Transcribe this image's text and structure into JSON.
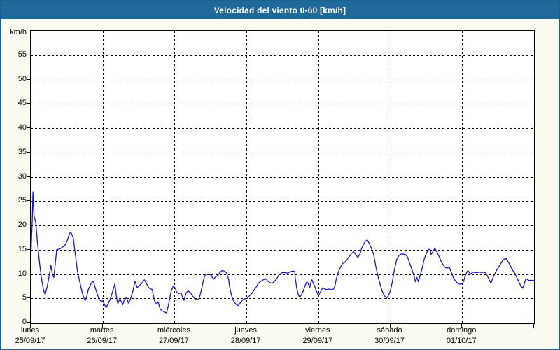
{
  "window": {
    "title": "Velocidad del viento 0-60 [km/h]"
  },
  "colors": {
    "header_bg": "#1f6a9b",
    "frame_border": "#1d6290",
    "page_bg": "#fbfbf1",
    "plot_bg": "#fffffe",
    "line": "#1414cc",
    "grid": "#000000",
    "text": "#000000"
  },
  "chart_data": {
    "type": "line",
    "title": "Velocidad del viento 0-60 [km/h]",
    "ylabel": "km/h",
    "xlabel": "",
    "ylim": [
      0,
      60
    ],
    "grid": "dashed",
    "legend_position": "none",
    "y_tick_labels": [
      0,
      5,
      10,
      15,
      20,
      25,
      30,
      35,
      40,
      45,
      50,
      55
    ],
    "y_gridlines": [
      5,
      10,
      15,
      20,
      25,
      30,
      35,
      40,
      45,
      50,
      55
    ],
    "x_axis": {
      "unit": "days",
      "days": [
        {
          "name": "lunes",
          "date": "25/09/17"
        },
        {
          "name": "martes",
          "date": "26/09/17"
        },
        {
          "name": "miércoles",
          "date": "27/09/17"
        },
        {
          "name": "jueves",
          "date": "28/09/17"
        },
        {
          "name": "viernes",
          "date": "29/09/17"
        },
        {
          "name": "sábado",
          "date": "30/09/17"
        },
        {
          "name": "domingo",
          "date": "01/10/17"
        }
      ]
    },
    "series": [
      {
        "name": "velocidad-del-viento",
        "units": "km/h",
        "points": [
          [
            0.0,
            13.0
          ],
          [
            0.01,
            17.0
          ],
          [
            0.02,
            21.0
          ],
          [
            0.03,
            26.9
          ],
          [
            0.045,
            22.0
          ],
          [
            0.07,
            20.5
          ],
          [
            0.09,
            17.0
          ],
          [
            0.12,
            12.5
          ],
          [
            0.15,
            9.0
          ],
          [
            0.18,
            6.5
          ],
          [
            0.2,
            5.8
          ],
          [
            0.23,
            7.5
          ],
          [
            0.26,
            10.0
          ],
          [
            0.28,
            11.8
          ],
          [
            0.3,
            10.0
          ],
          [
            0.32,
            9.3
          ],
          [
            0.34,
            12.0
          ],
          [
            0.36,
            15.0
          ],
          [
            0.39,
            15.1
          ],
          [
            0.42,
            15.3
          ],
          [
            0.45,
            15.6
          ],
          [
            0.48,
            16.0
          ],
          [
            0.51,
            17.0
          ],
          [
            0.54,
            18.4
          ],
          [
            0.56,
            18.5
          ],
          [
            0.59,
            17.5
          ],
          [
            0.62,
            14.0
          ],
          [
            0.65,
            10.5
          ],
          [
            0.68,
            8.5
          ],
          [
            0.71,
            6.5
          ],
          [
            0.74,
            5.0
          ],
          [
            0.76,
            4.6
          ],
          [
            0.78,
            5.5
          ],
          [
            0.8,
            6.8
          ],
          [
            0.83,
            7.8
          ],
          [
            0.85,
            8.3
          ],
          [
            0.87,
            8.5
          ],
          [
            0.9,
            7.0
          ],
          [
            0.92,
            6.1
          ],
          [
            0.95,
            4.8
          ],
          [
            0.98,
            4.4
          ],
          [
            1.0,
            4.5
          ],
          [
            1.03,
            3.6
          ],
          [
            1.05,
            3.1
          ],
          [
            1.08,
            4.0
          ],
          [
            1.11,
            5.0
          ],
          [
            1.14,
            6.5
          ],
          [
            1.17,
            8.0
          ],
          [
            1.19,
            5.5
          ],
          [
            1.21,
            3.9
          ],
          [
            1.24,
            4.9
          ],
          [
            1.26,
            4.3
          ],
          [
            1.28,
            3.7
          ],
          [
            1.3,
            4.6
          ],
          [
            1.33,
            5.2
          ],
          [
            1.36,
            4.0
          ],
          [
            1.39,
            5.0
          ],
          [
            1.42,
            6.5
          ],
          [
            1.45,
            8.5
          ],
          [
            1.48,
            7.2
          ],
          [
            1.51,
            7.6
          ],
          [
            1.54,
            8.0
          ],
          [
            1.58,
            8.8
          ],
          [
            1.61,
            8.0
          ],
          [
            1.64,
            7.2
          ],
          [
            1.66,
            7.0
          ],
          [
            1.69,
            6.8
          ],
          [
            1.72,
            4.5
          ],
          [
            1.75,
            3.8
          ],
          [
            1.77,
            4.3
          ],
          [
            1.8,
            2.8
          ],
          [
            1.83,
            2.4
          ],
          [
            1.86,
            2.2
          ],
          [
            1.89,
            2.0
          ],
          [
            1.92,
            4.0
          ],
          [
            1.95,
            6.3
          ],
          [
            1.98,
            7.5
          ],
          [
            2.01,
            7.1
          ],
          [
            2.03,
            6.2
          ],
          [
            2.06,
            6.0
          ],
          [
            2.09,
            6.1
          ],
          [
            2.11,
            5.3
          ],
          [
            2.13,
            4.6
          ],
          [
            2.16,
            6.1
          ],
          [
            2.19,
            6.5
          ],
          [
            2.22,
            6.2
          ],
          [
            2.25,
            5.5
          ],
          [
            2.28,
            4.9
          ],
          [
            2.31,
            4.7
          ],
          [
            2.34,
            4.9
          ],
          [
            2.37,
            6.5
          ],
          [
            2.4,
            8.6
          ],
          [
            2.42,
            9.7
          ],
          [
            2.45,
            10.0
          ],
          [
            2.48,
            9.9
          ],
          [
            2.51,
            9.8
          ],
          [
            2.54,
            8.9
          ],
          [
            2.57,
            9.4
          ],
          [
            2.6,
            9.7
          ],
          [
            2.63,
            10.3
          ],
          [
            2.66,
            10.7
          ],
          [
            2.69,
            10.6
          ],
          [
            2.72,
            10.3
          ],
          [
            2.75,
            9.0
          ],
          [
            2.77,
            7.0
          ],
          [
            2.8,
            5.2
          ],
          [
            2.83,
            4.2
          ],
          [
            2.86,
            3.7
          ],
          [
            2.89,
            3.5
          ],
          [
            2.92,
            4.2
          ],
          [
            2.95,
            4.7
          ],
          [
            2.98,
            4.9
          ],
          [
            3.01,
            5.0
          ],
          [
            3.04,
            5.5
          ],
          [
            3.08,
            6.1
          ],
          [
            3.11,
            6.8
          ],
          [
            3.14,
            7.4
          ],
          [
            3.16,
            8.0
          ],
          [
            3.19,
            8.4
          ],
          [
            3.22,
            8.7
          ],
          [
            3.25,
            8.9
          ],
          [
            3.27,
            9.0
          ],
          [
            3.3,
            8.5
          ],
          [
            3.33,
            8.2
          ],
          [
            3.36,
            8.1
          ],
          [
            3.39,
            8.5
          ],
          [
            3.42,
            9.0
          ],
          [
            3.45,
            9.8
          ],
          [
            3.48,
            10.1
          ],
          [
            3.5,
            10.3
          ],
          [
            3.53,
            10.3
          ],
          [
            3.56,
            10.2
          ],
          [
            3.59,
            10.3
          ],
          [
            3.62,
            10.5
          ],
          [
            3.65,
            10.6
          ],
          [
            3.67,
            10.5
          ],
          [
            3.68,
            9.0
          ],
          [
            3.7,
            7.1
          ],
          [
            3.72,
            5.8
          ],
          [
            3.74,
            5.2
          ],
          [
            3.76,
            5.6
          ],
          [
            3.79,
            6.5
          ],
          [
            3.82,
            7.8
          ],
          [
            3.84,
            8.4
          ],
          [
            3.86,
            8.0
          ],
          [
            3.88,
            7.2
          ],
          [
            3.89,
            8.0
          ],
          [
            3.91,
            8.8
          ],
          [
            3.94,
            7.8
          ],
          [
            3.97,
            6.6
          ],
          [
            4.0,
            5.6
          ],
          [
            4.03,
            6.3
          ],
          [
            4.06,
            7.2
          ],
          [
            4.09,
            6.9
          ],
          [
            4.12,
            6.8
          ],
          [
            4.15,
            6.9
          ],
          [
            4.18,
            6.8
          ],
          [
            4.21,
            6.9
          ],
          [
            4.23,
            7.5
          ],
          [
            4.25,
            9.0
          ],
          [
            4.28,
            10.5
          ],
          [
            4.31,
            11.5
          ],
          [
            4.34,
            12.2
          ],
          [
            4.37,
            12.4
          ],
          [
            4.4,
            13.0
          ],
          [
            4.43,
            13.6
          ],
          [
            4.46,
            14.2
          ],
          [
            4.49,
            14.6
          ],
          [
            4.52,
            14.0
          ],
          [
            4.55,
            13.4
          ],
          [
            4.58,
            14.2
          ],
          [
            4.6,
            15.2
          ],
          [
            4.63,
            16.2
          ],
          [
            4.66,
            16.8
          ],
          [
            4.68,
            17.0
          ],
          [
            4.71,
            16.2
          ],
          [
            4.74,
            15.2
          ],
          [
            4.77,
            14.0
          ],
          [
            4.8,
            11.5
          ],
          [
            4.83,
            9.5
          ],
          [
            4.86,
            7.8
          ],
          [
            4.89,
            6.4
          ],
          [
            4.92,
            5.5
          ],
          [
            4.95,
            5.0
          ],
          [
            4.97,
            5.5
          ],
          [
            5.0,
            6.5
          ],
          [
            5.03,
            8.5
          ],
          [
            5.06,
            11.0
          ],
          [
            5.09,
            13.0
          ],
          [
            5.12,
            13.8
          ],
          [
            5.15,
            14.1
          ],
          [
            5.18,
            14.1
          ],
          [
            5.21,
            14.0
          ],
          [
            5.24,
            13.5
          ],
          [
            5.27,
            12.2
          ],
          [
            5.3,
            11.0
          ],
          [
            5.33,
            9.6
          ],
          [
            5.35,
            8.4
          ],
          [
            5.37,
            9.3
          ],
          [
            5.39,
            8.4
          ],
          [
            5.44,
            11.0
          ],
          [
            5.47,
            12.9
          ],
          [
            5.5,
            14.2
          ],
          [
            5.53,
            15.0
          ],
          [
            5.55,
            15.1
          ],
          [
            5.57,
            14.0
          ],
          [
            5.6,
            14.8
          ],
          [
            5.62,
            15.3
          ],
          [
            5.65,
            14.5
          ],
          [
            5.68,
            13.6
          ],
          [
            5.71,
            12.5
          ],
          [
            5.74,
            11.8
          ],
          [
            5.76,
            11.4
          ],
          [
            5.79,
            11.2
          ],
          [
            5.82,
            11.4
          ],
          [
            5.85,
            10.3
          ],
          [
            5.88,
            9.2
          ],
          [
            5.91,
            8.5
          ],
          [
            5.94,
            8.1
          ],
          [
            5.97,
            7.9
          ],
          [
            6.0,
            8.0
          ],
          [
            6.02,
            8.5
          ],
          [
            6.04,
            9.5
          ],
          [
            6.06,
            10.2
          ],
          [
            6.08,
            10.7
          ],
          [
            6.1,
            10.3
          ],
          [
            6.12,
            10.0
          ],
          [
            6.15,
            10.4
          ],
          [
            6.18,
            10.3
          ],
          [
            6.21,
            10.3
          ],
          [
            6.24,
            10.4
          ],
          [
            6.27,
            10.3
          ],
          [
            6.3,
            10.4
          ],
          [
            6.33,
            10.2
          ],
          [
            6.36,
            9.3
          ],
          [
            6.39,
            8.4
          ],
          [
            6.4,
            8.1
          ],
          [
            6.43,
            9.3
          ],
          [
            6.46,
            10.2
          ],
          [
            6.48,
            10.8
          ],
          [
            6.51,
            11.5
          ],
          [
            6.54,
            12.2
          ],
          [
            6.57,
            12.9
          ],
          [
            6.59,
            13.1
          ],
          [
            6.61,
            13.2
          ],
          [
            6.64,
            12.5
          ],
          [
            6.67,
            11.7
          ],
          [
            6.7,
            10.8
          ],
          [
            6.73,
            10.2
          ],
          [
            6.76,
            9.3
          ],
          [
            6.79,
            8.3
          ],
          [
            6.82,
            7.5
          ],
          [
            6.84,
            7.1
          ],
          [
            6.86,
            7.8
          ],
          [
            6.88,
            8.8
          ],
          [
            6.9,
            9.0
          ],
          [
            6.92,
            8.7
          ],
          [
            6.95,
            8.7
          ],
          [
            6.98,
            8.7
          ],
          [
            7.0,
            8.7
          ]
        ]
      }
    ]
  }
}
